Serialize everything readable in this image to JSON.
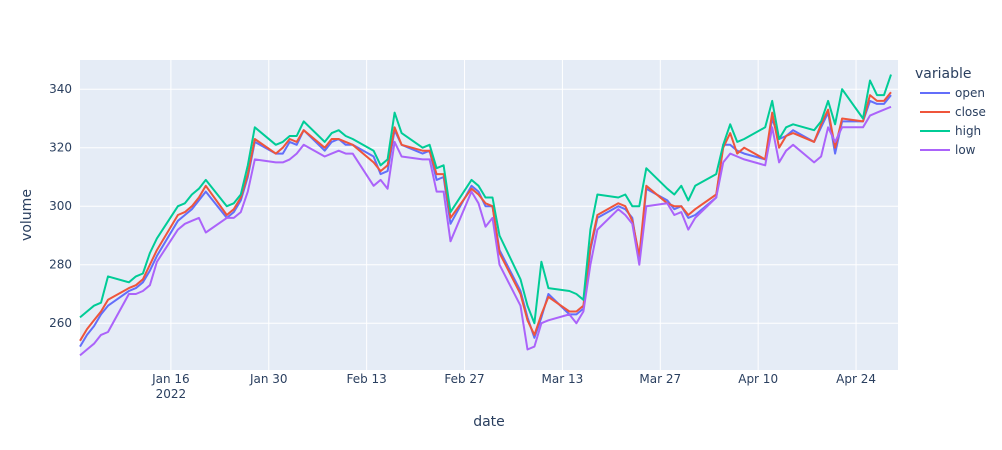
{
  "chart_data": {
    "type": "line",
    "xlabel": "date",
    "ylabel": "volume",
    "legend_title": "variable",
    "legend_position": "right",
    "grid": true,
    "x_range": [
      "2022-01-03",
      "2022-04-30"
    ],
    "ylim": [
      244,
      350
    ],
    "x_ticks": [
      {
        "date": "2022-01-16",
        "label": "Jan 16",
        "sublabel": "2022"
      },
      {
        "date": "2022-01-30",
        "label": "Jan 30",
        "sublabel": ""
      },
      {
        "date": "2022-02-13",
        "label": "Feb 13",
        "sublabel": ""
      },
      {
        "date": "2022-02-27",
        "label": "Feb 27",
        "sublabel": ""
      },
      {
        "date": "2022-03-13",
        "label": "Mar 13",
        "sublabel": ""
      },
      {
        "date": "2022-03-27",
        "label": "Mar 27",
        "sublabel": ""
      },
      {
        "date": "2022-04-10",
        "label": "Apr 10",
        "sublabel": ""
      },
      {
        "date": "2022-04-24",
        "label": "Apr 24",
        "sublabel": ""
      }
    ],
    "y_ticks": [
      260,
      280,
      300,
      320,
      340
    ],
    "x": [
      "2022-01-03",
      "2022-01-04",
      "2022-01-05",
      "2022-01-06",
      "2022-01-07",
      "2022-01-10",
      "2022-01-11",
      "2022-01-12",
      "2022-01-13",
      "2022-01-14",
      "2022-01-17",
      "2022-01-18",
      "2022-01-19",
      "2022-01-20",
      "2022-01-21",
      "2022-01-24",
      "2022-01-25",
      "2022-01-26",
      "2022-01-27",
      "2022-01-28",
      "2022-01-31",
      "2022-02-01",
      "2022-02-02",
      "2022-02-03",
      "2022-02-04",
      "2022-02-07",
      "2022-02-08",
      "2022-02-09",
      "2022-02-10",
      "2022-02-11",
      "2022-02-14",
      "2022-02-15",
      "2022-02-16",
      "2022-02-17",
      "2022-02-18",
      "2022-02-21",
      "2022-02-22",
      "2022-02-23",
      "2022-02-24",
      "2022-02-25",
      "2022-02-28",
      "2022-03-01",
      "2022-03-02",
      "2022-03-03",
      "2022-03-04",
      "2022-03-07",
      "2022-03-08",
      "2022-03-09",
      "2022-03-10",
      "2022-03-11",
      "2022-03-14",
      "2022-03-15",
      "2022-03-16",
      "2022-03-17",
      "2022-03-18",
      "2022-03-21",
      "2022-03-22",
      "2022-03-23",
      "2022-03-24",
      "2022-03-25",
      "2022-03-28",
      "2022-03-29",
      "2022-03-30",
      "2022-03-31",
      "2022-04-01",
      "2022-04-04",
      "2022-04-05",
      "2022-04-06",
      "2022-04-07",
      "2022-04-08",
      "2022-04-11",
      "2022-04-12",
      "2022-04-13",
      "2022-04-14",
      "2022-04-15",
      "2022-04-18",
      "2022-04-19",
      "2022-04-20",
      "2022-04-21",
      "2022-04-22",
      "2022-04-25",
      "2022-04-26",
      "2022-04-27",
      "2022-04-28",
      "2022-04-29"
    ],
    "series": [
      {
        "name": "open",
        "color": "#636efa",
        "values": [
          252,
          256,
          259,
          263,
          266,
          271,
          272,
          274,
          278,
          283,
          295,
          297,
          299,
          302,
          305,
          296,
          298,
          302,
          310,
          322,
          318,
          318,
          322,
          321,
          326,
          319,
          322,
          323,
          321,
          321,
          317,
          311,
          312,
          326,
          321,
          318,
          319,
          309,
          310,
          294,
          307,
          305,
          300,
          300,
          285,
          271,
          262,
          255,
          262,
          270,
          263,
          263,
          265,
          285,
          296,
          300,
          299,
          296,
          281,
          306,
          302,
          299,
          300,
          296,
          297,
          303,
          321,
          321,
          319,
          318,
          316,
          330,
          323,
          324,
          326,
          322,
          327,
          332,
          318,
          329,
          329,
          336,
          335,
          335,
          338
        ]
      },
      {
        "name": "close",
        "color": "#ef553b",
        "values": [
          254,
          258,
          261,
          264,
          268,
          272,
          273,
          275,
          280,
          285,
          297,
          298,
          300,
          303,
          307,
          297,
          299,
          303,
          311,
          323,
          318,
          320,
          323,
          322,
          326,
          320,
          323,
          323,
          322,
          321,
          315,
          312,
          314,
          327,
          321,
          319,
          319,
          311,
          311,
          296,
          306,
          304,
          301,
          300,
          284,
          270,
          261,
          256,
          263,
          269,
          264,
          264,
          266,
          286,
          297,
          301,
          300,
          295,
          283,
          307,
          301,
          300,
          300,
          297,
          299,
          304,
          320,
          325,
          318,
          320,
          316,
          332,
          320,
          324,
          325,
          322,
          328,
          333,
          320,
          330,
          329,
          338,
          336,
          336,
          339
        ]
      },
      {
        "name": "high",
        "color": "#00cc96",
        "values": [
          262,
          264,
          266,
          267,
          276,
          274,
          276,
          277,
          284,
          289,
          300,
          301,
          304,
          306,
          309,
          300,
          301,
          304,
          314,
          327,
          321,
          322,
          324,
          324,
          329,
          322,
          325,
          326,
          324,
          323,
          319,
          314,
          316,
          332,
          325,
          320,
          321,
          313,
          314,
          298,
          309,
          307,
          303,
          303,
          290,
          275,
          266,
          260,
          281,
          272,
          271,
          270,
          268,
          292,
          304,
          303,
          304,
          300,
          300,
          313,
          306,
          304,
          307,
          302,
          307,
          311,
          321,
          328,
          322,
          323,
          327,
          336,
          323,
          327,
          328,
          326,
          329,
          336,
          328,
          340,
          330,
          343,
          338,
          338,
          345
        ]
      },
      {
        "name": "low",
        "color": "#ab63fa",
        "values": [
          249,
          251,
          253,
          256,
          257,
          270,
          270,
          271,
          273,
          281,
          292,
          294,
          295,
          296,
          291,
          296,
          296,
          298,
          305,
          316,
          315,
          315,
          316,
          318,
          321,
          317,
          318,
          319,
          318,
          318,
          307,
          309,
          306,
          322,
          317,
          316,
          316,
          305,
          305,
          288,
          305,
          301,
          293,
          296,
          280,
          266,
          251,
          252,
          260,
          261,
          263,
          260,
          264,
          280,
          292,
          299,
          297,
          294,
          280,
          300,
          301,
          297,
          298,
          292,
          296,
          303,
          315,
          318,
          317,
          316,
          314,
          327,
          315,
          319,
          321,
          315,
          317,
          327,
          322,
          327,
          327,
          331,
          332,
          333,
          334
        ]
      }
    ]
  }
}
